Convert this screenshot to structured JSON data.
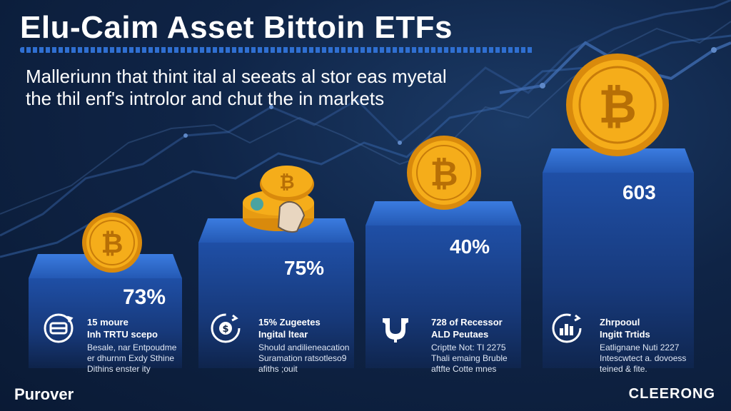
{
  "header": {
    "title": "Elu-Caim Asset Bittoin ETFs",
    "subtitle_line1": "Malleriunn that thint ital al seeats al stor eas myetal",
    "subtitle_line2": "the thil enf's introlor and chut the in markets"
  },
  "pillars": [
    {
      "value_label": "73%"
    },
    {
      "value_label": "75%"
    },
    {
      "value_label": "40%"
    },
    {
      "value_label": "603"
    }
  ],
  "stats": [
    {
      "icon": "refresh-coin-icon",
      "head1": "15 moure",
      "head2": "Inh TRTU scepo",
      "body1": "Besale, nar Entpoudme",
      "body2": "er dhurnm Exdy Sthine",
      "body3": "Dithins enster ity"
    },
    {
      "icon": "dollar-cycle-icon",
      "head1": "15% Zugeetes",
      "head2": "Ingital ltear",
      "body1": "Should andilieneacation",
      "body2": "Suramation ratsotleso9",
      "body3": "afiths ;ouit"
    },
    {
      "icon": "hand-coin-icon",
      "head1": "728 of Recessor",
      "head2": "ALD Peutaes",
      "body1": "Criptte Not: TI 2275",
      "body2": "Thali emaing Bruble",
      "body3": "aftfte Cotte mnes"
    },
    {
      "icon": "bar-chart-cycle-icon",
      "head1": "Zhrpooul",
      "head2": "Ingitt Trtids",
      "body1": "Eatlignane Nuti 2227",
      "body2": "Intescwtect a. dovoess",
      "body3": "teined & fite."
    }
  ],
  "footer": {
    "brand_left": "Purover",
    "brand_right": "CLEERONG"
  },
  "colors": {
    "background": "#0f2446",
    "pillar": "#1f4fa6",
    "accent": "#2f6fd1",
    "coin": "#f2a516"
  }
}
